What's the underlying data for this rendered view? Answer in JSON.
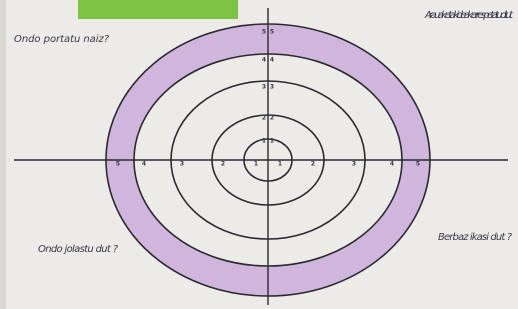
{
  "quadrants": {
    "top_left": "Ondo portatu naiz?",
    "top_right": "Arauak eta kideak errespetatu ditut",
    "bottom_left": "Ondo jolastu dut ?",
    "bottom_right": "Berbaz ikasi dut ?"
  },
  "scale": [
    1,
    2,
    3,
    4,
    5
  ]
}
